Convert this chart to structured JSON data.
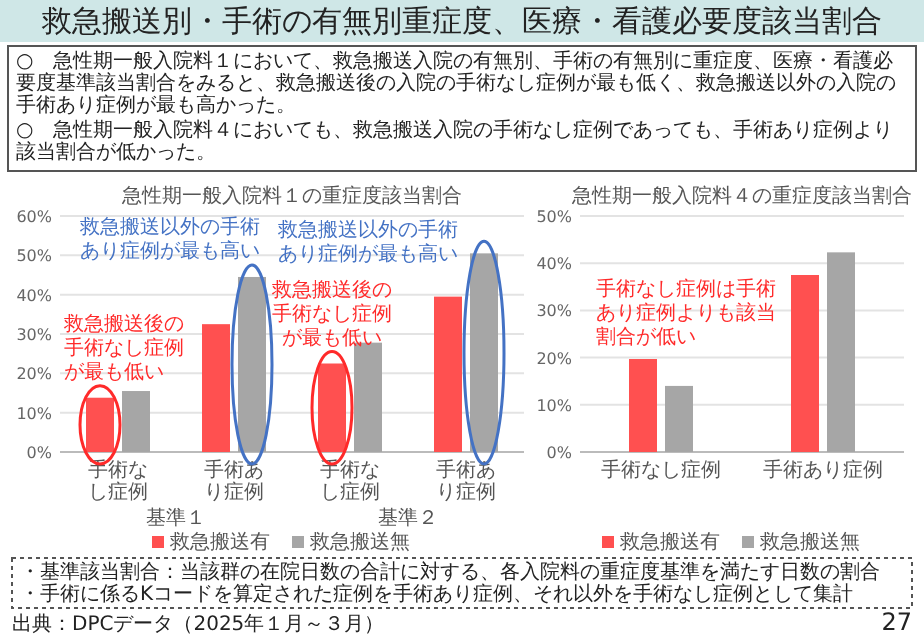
{
  "chart_data": [
    {
      "type": "other",
      "title": "救急搬送別・手術の有無別重症度、医療・看護必要度該当割合",
      "annotations": [
        "○　急性期一般入院料１において、救急搬送入院の有無別、手術の有無別に重症度、医療・看護必要度基準該当割合をみると、救急搬送後の入院の手術なし症例が最も低く、救急搬送以外の入院の手術あり症例が最も高かった。",
        "○　急性期一般入院料４においても、救急搬送入院の手術なし症例であっても、手術あり症例より該当割合が低かった。",
        "・基準該当割合：当該群の在院日数の合計に対する、各入院料の重症度基準を満たす日数の割合",
        "・手術に係るKコードを算定された症例を手術あり症例、それ以外を手術なし症例として集計",
        "出典：DPCデータ（2025年１月～３月）",
        "27"
      ]
    },
    {
      "type": "bar",
      "title": "急性期一般入院料１の重症度該当割合",
      "categories": [
        "手術なし症例",
        "手術あり症例",
        "手術なし症例",
        "手術あり症例"
      ],
      "series": [
        {
          "name": "救急搬送有",
          "color": "#ff5050",
          "values": [
            13.8,
            32.5,
            22.5,
            39.5
          ]
        },
        {
          "name": "救急搬送無",
          "color": "#a6a6a6",
          "values": [
            15.5,
            44.5,
            27.8,
            50.5
          ]
        }
      ],
      "ylim": [
        0,
        60
      ],
      "yticks": [
        {
          "value": 0,
          "label": "0%"
        },
        {
          "value": 10,
          "label": "10%"
        },
        {
          "value": 20,
          "label": "20%"
        },
        {
          "value": 30,
          "label": "30%"
        },
        {
          "value": 40,
          "label": "40%"
        },
        {
          "value": 50,
          "label": "50%"
        },
        {
          "value": 60,
          "label": "60%"
        }
      ],
      "grid": "y",
      "legend": "bottom",
      "annotations": [
        "基準１",
        "基準２",
        "救急搬送後の手術なし症例が最も低い",
        "救急搬送以外の手術あり症例が最も高い",
        "救急搬送後の手術なし症例が最も低い",
        "救急搬送以外の手術あり症例が最も高い"
      ]
    },
    {
      "type": "bar",
      "title": "急性期一般入院料４の重症度該当割合",
      "categories": [
        "手術なし症例",
        "手術あり症例"
      ],
      "series": [
        {
          "name": "救急搬送有",
          "color": "#ff5050",
          "values": [
            19.7,
            37.5
          ]
        },
        {
          "name": "救急搬送無",
          "color": "#a6a6a6",
          "values": [
            14,
            42.3
          ]
        }
      ],
      "ylim": [
        0,
        50
      ],
      "yticks": [
        {
          "value": 0,
          "label": "0%"
        },
        {
          "value": 10,
          "label": "10%"
        },
        {
          "value": 20,
          "label": "20%"
        },
        {
          "value": 30,
          "label": "30%"
        },
        {
          "value": 40,
          "label": "40%"
        },
        {
          "value": 50,
          "label": "50%"
        }
      ],
      "grid": "y",
      "legend": "bottom",
      "annotations": [
        "手術なし症例は手術あり症例よりも該当割合が低い"
      ]
    }
  ]
}
